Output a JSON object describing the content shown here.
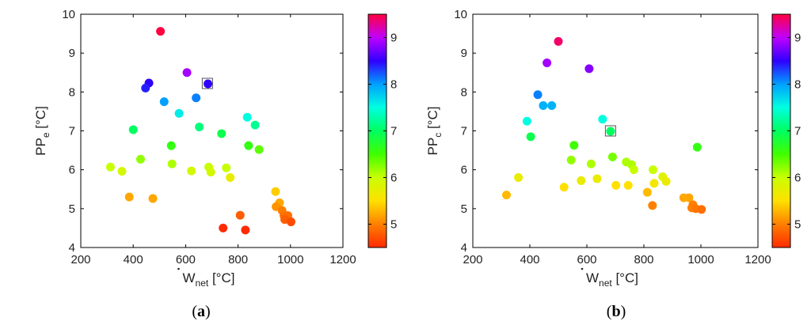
{
  "chart_data": [
    {
      "type": "scatter",
      "caption": "(a)",
      "ylabel_main": "PP",
      "ylabel_sub": "e",
      "ylabel_unit": " [°C]",
      "xlabel_main": "W",
      "xlabel_sub": "net",
      "xlabel_unit": " [°C]",
      "xlim": [
        200,
        1200
      ],
      "ylim": [
        4,
        10
      ],
      "xticks": [
        200,
        400,
        600,
        800,
        1000,
        1200
      ],
      "yticks": [
        4,
        5,
        6,
        7,
        8,
        9,
        10
      ],
      "colorbar": {
        "range": [
          4.5,
          9.5
        ],
        "ticks": [
          5,
          6,
          7,
          8,
          9
        ]
      },
      "highlight": {
        "x": 683,
        "y": 8.22
      },
      "points": [
        {
          "x": 504,
          "y": 9.56,
          "c": 9.5
        },
        {
          "x": 605,
          "y": 8.5,
          "c": 8.9
        },
        {
          "x": 460,
          "y": 8.23,
          "c": 8.5
        },
        {
          "x": 447,
          "y": 8.1,
          "c": 8.4
        },
        {
          "x": 685,
          "y": 8.21,
          "c": 8.5
        },
        {
          "x": 518,
          "y": 7.75,
          "c": 8.0
        },
        {
          "x": 640,
          "y": 7.85,
          "c": 8.1
        },
        {
          "x": 575,
          "y": 7.45,
          "c": 7.6
        },
        {
          "x": 835,
          "y": 7.35,
          "c": 7.5
        },
        {
          "x": 865,
          "y": 7.15,
          "c": 7.2
        },
        {
          "x": 400,
          "y": 7.03,
          "c": 7.0
        },
        {
          "x": 652,
          "y": 7.1,
          "c": 7.1
        },
        {
          "x": 737,
          "y": 6.93,
          "c": 6.9
        },
        {
          "x": 545,
          "y": 6.62,
          "c": 6.6
        },
        {
          "x": 840,
          "y": 6.62,
          "c": 6.6
        },
        {
          "x": 880,
          "y": 6.52,
          "c": 6.4
        },
        {
          "x": 428,
          "y": 6.27,
          "c": 6.2
        },
        {
          "x": 313,
          "y": 6.07,
          "c": 6.0
        },
        {
          "x": 548,
          "y": 6.15,
          "c": 6.1
        },
        {
          "x": 357,
          "y": 5.96,
          "c": 5.9
        },
        {
          "x": 622,
          "y": 5.97,
          "c": 5.9
        },
        {
          "x": 688,
          "y": 6.07,
          "c": 6.0
        },
        {
          "x": 696,
          "y": 5.94,
          "c": 5.9
        },
        {
          "x": 755,
          "y": 6.05,
          "c": 6.0
        },
        {
          "x": 770,
          "y": 5.8,
          "c": 5.7
        },
        {
          "x": 385,
          "y": 5.3,
          "c": 5.2
        },
        {
          "x": 475,
          "y": 5.26,
          "c": 5.2
        },
        {
          "x": 943,
          "y": 5.44,
          "c": 5.4
        },
        {
          "x": 958,
          "y": 5.15,
          "c": 5.2
        },
        {
          "x": 945,
          "y": 5.05,
          "c": 5.1
        },
        {
          "x": 968,
          "y": 4.95,
          "c": 5.0
        },
        {
          "x": 975,
          "y": 4.82,
          "c": 4.9
        },
        {
          "x": 990,
          "y": 4.82,
          "c": 4.9
        },
        {
          "x": 978,
          "y": 4.72,
          "c": 4.8
        },
        {
          "x": 1002,
          "y": 4.66,
          "c": 4.7
        },
        {
          "x": 808,
          "y": 4.83,
          "c": 4.8
        },
        {
          "x": 743,
          "y": 4.5,
          "c": 4.5
        },
        {
          "x": 828,
          "y": 4.45,
          "c": 4.5
        }
      ]
    },
    {
      "type": "scatter",
      "caption": "(b)",
      "ylabel_main": "PP",
      "ylabel_sub": "c",
      "ylabel_unit": " [°C]",
      "xlabel_main": "W",
      "xlabel_sub": "net",
      "xlabel_unit": " [°C]",
      "xlim": [
        200,
        1200
      ],
      "ylim": [
        4,
        10
      ],
      "xticks": [
        200,
        400,
        600,
        800,
        1000,
        1200
      ],
      "yticks": [
        4,
        5,
        6,
        7,
        8,
        9,
        10
      ],
      "colorbar": {
        "range": [
          4.5,
          9.5
        ],
        "ticks": [
          5,
          6,
          7,
          8,
          9
        ]
      },
      "highlight": {
        "x": 683,
        "y": 7.0
      },
      "points": [
        {
          "x": 500,
          "y": 9.3,
          "c": 9.4
        },
        {
          "x": 460,
          "y": 8.75,
          "c": 8.9
        },
        {
          "x": 608,
          "y": 8.6,
          "c": 8.8
        },
        {
          "x": 428,
          "y": 7.93,
          "c": 8.1
        },
        {
          "x": 447,
          "y": 7.65,
          "c": 7.9
        },
        {
          "x": 477,
          "y": 7.65,
          "c": 7.9
        },
        {
          "x": 390,
          "y": 7.25,
          "c": 7.5
        },
        {
          "x": 655,
          "y": 7.3,
          "c": 7.5
        },
        {
          "x": 683,
          "y": 6.99,
          "c": 7.0
        },
        {
          "x": 403,
          "y": 6.85,
          "c": 6.9
        },
        {
          "x": 987,
          "y": 6.58,
          "c": 6.6
        },
        {
          "x": 555,
          "y": 6.63,
          "c": 6.5
        },
        {
          "x": 690,
          "y": 6.33,
          "c": 6.3
        },
        {
          "x": 545,
          "y": 6.25,
          "c": 6.2
        },
        {
          "x": 615,
          "y": 6.15,
          "c": 6.1
        },
        {
          "x": 738,
          "y": 6.2,
          "c": 6.1
        },
        {
          "x": 757,
          "y": 6.13,
          "c": 6.1
        },
        {
          "x": 765,
          "y": 6.0,
          "c": 6.0
        },
        {
          "x": 832,
          "y": 6.0,
          "c": 6.0
        },
        {
          "x": 866,
          "y": 5.82,
          "c": 5.8
        },
        {
          "x": 360,
          "y": 5.8,
          "c": 5.7
        },
        {
          "x": 580,
          "y": 5.72,
          "c": 5.7
        },
        {
          "x": 636,
          "y": 5.77,
          "c": 5.7
        },
        {
          "x": 836,
          "y": 5.65,
          "c": 5.6
        },
        {
          "x": 878,
          "y": 5.7,
          "c": 5.7
        },
        {
          "x": 520,
          "y": 5.55,
          "c": 5.5
        },
        {
          "x": 702,
          "y": 5.6,
          "c": 5.5
        },
        {
          "x": 745,
          "y": 5.6,
          "c": 5.5
        },
        {
          "x": 318,
          "y": 5.35,
          "c": 5.3
        },
        {
          "x": 812,
          "y": 5.42,
          "c": 5.3
        },
        {
          "x": 940,
          "y": 5.28,
          "c": 5.2
        },
        {
          "x": 958,
          "y": 5.28,
          "c": 5.2
        },
        {
          "x": 972,
          "y": 5.1,
          "c": 5.0
        },
        {
          "x": 968,
          "y": 5.02,
          "c": 5.0
        },
        {
          "x": 982,
          "y": 5.0,
          "c": 4.95
        },
        {
          "x": 1002,
          "y": 4.98,
          "c": 4.9
        },
        {
          "x": 830,
          "y": 5.08,
          "c": 5.0
        }
      ]
    }
  ]
}
